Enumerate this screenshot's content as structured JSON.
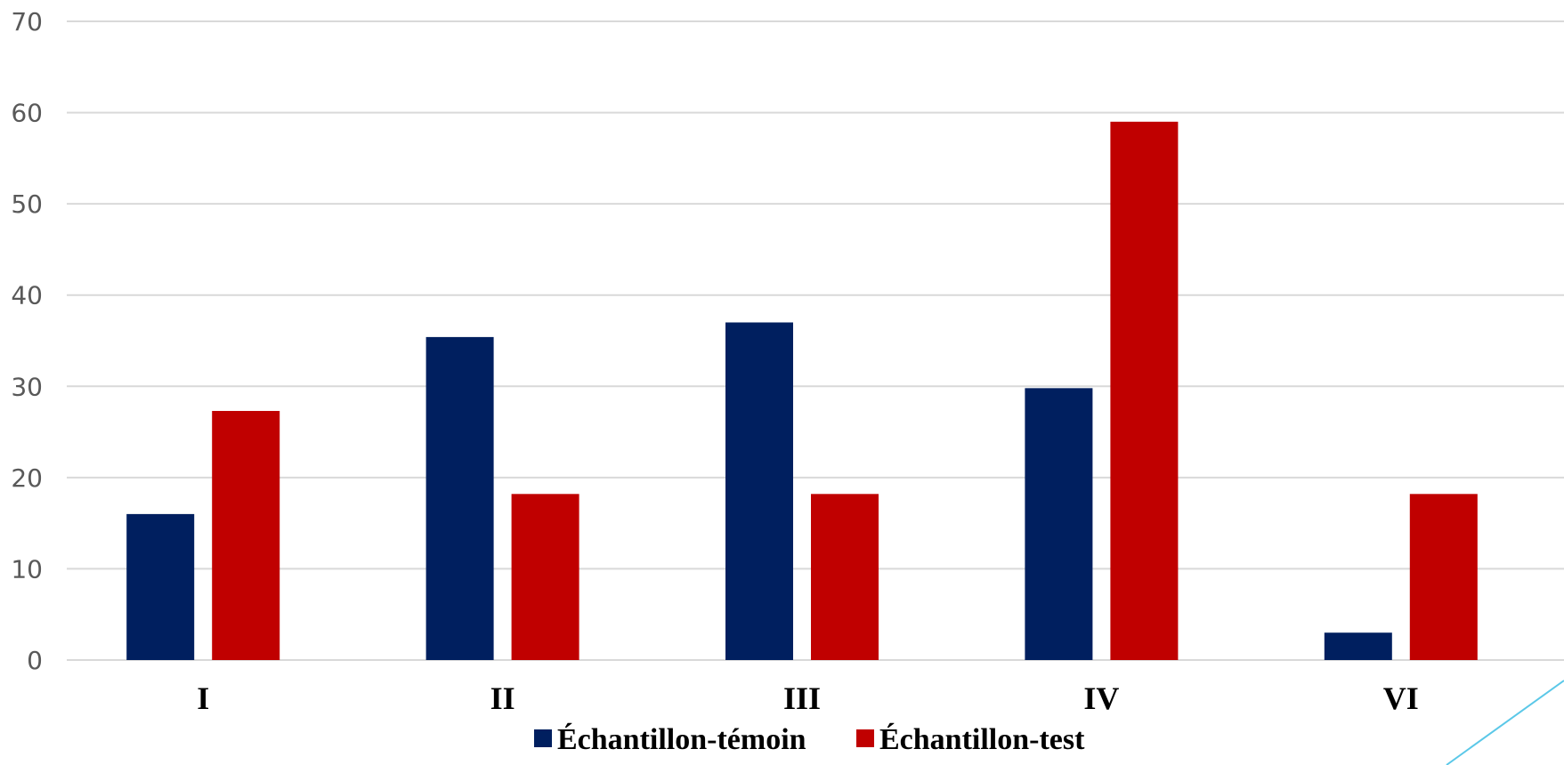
{
  "chart_data": {
    "type": "bar",
    "title": "",
    "xlabel": "",
    "ylabel": "",
    "categories": [
      "I",
      "II",
      "III",
      "IV",
      "VI"
    ],
    "series": [
      {
        "name": "Échantillon-témoin",
        "color": "#001f5f",
        "values": [
          16,
          35.4,
          37,
          29.8,
          3
        ]
      },
      {
        "name": "Échantillon-test",
        "color": "#c00000",
        "values": [
          27.3,
          18.2,
          18.2,
          59,
          18.2
        ]
      }
    ],
    "ylim": [
      0,
      70
    ],
    "yticks": [
      0,
      10,
      20,
      30,
      40,
      50,
      60,
      70
    ],
    "grid": true,
    "legend_position": "bottom"
  },
  "decor": {
    "accent_line_color": "#5bc8e8"
  }
}
